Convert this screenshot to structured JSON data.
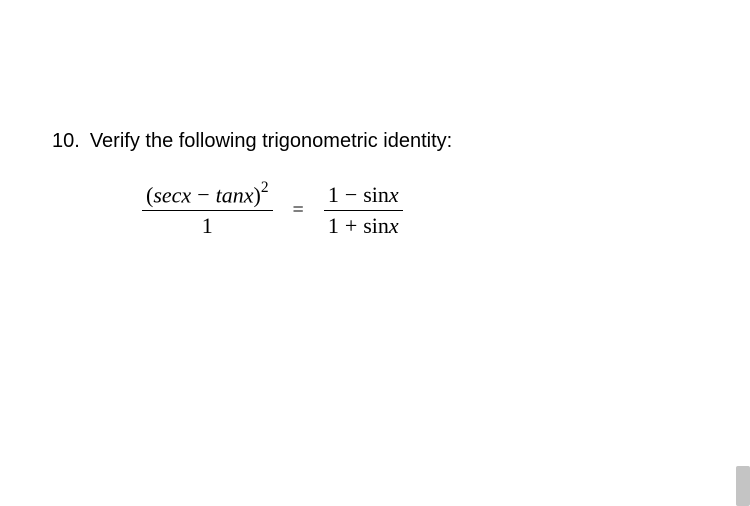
{
  "problem": {
    "number": "10.",
    "text": "Verify the following trigonometric identity:"
  },
  "equation": {
    "left_fraction": {
      "numerator_open": "(",
      "numerator_sec": "sec",
      "numerator_var1": "x",
      "numerator_minus": "−",
      "numerator_tan": "tan",
      "numerator_var2": "x",
      "numerator_close": ")",
      "numerator_exp": "2",
      "denominator": "1"
    },
    "equals": "=",
    "right_fraction": {
      "numerator_one": "1",
      "numerator_minus": "−",
      "numerator_sin": "sin",
      "numerator_var": "x",
      "denominator_one": "1",
      "denominator_plus": "+",
      "denominator_sin": "sin",
      "denominator_var": "x"
    }
  },
  "styling": {
    "background_color": "#ffffff",
    "text_color": "#000000",
    "body_font_size": 20,
    "equation_font_size": 22,
    "scrollbar_color": "#c4c4c4"
  }
}
